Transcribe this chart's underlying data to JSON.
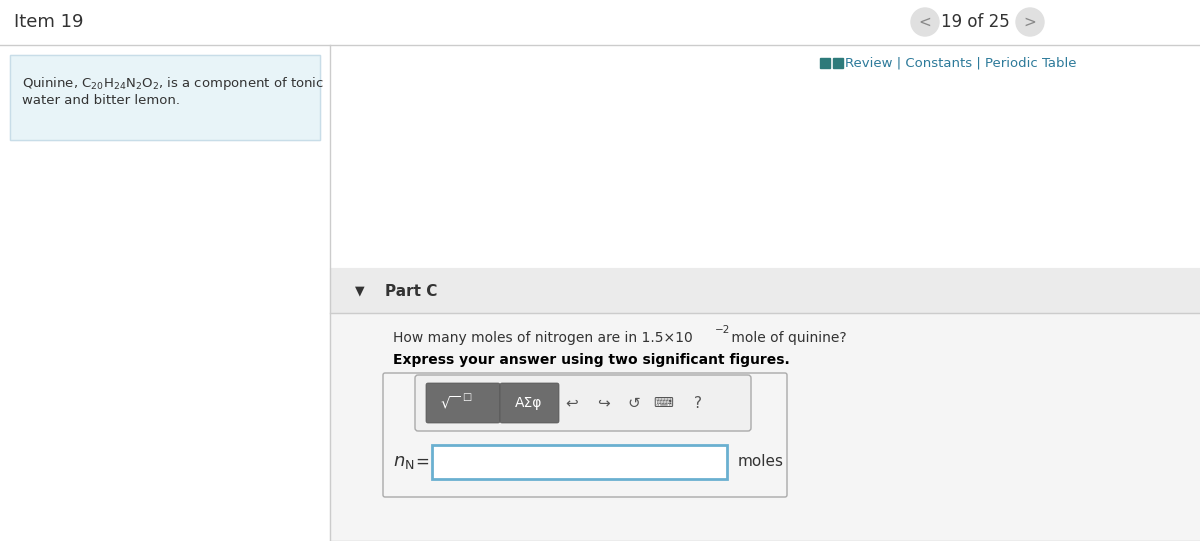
{
  "title": "Item 19",
  "nav_text": "19 of 25",
  "review_text": "Review | Constants | Periodic Table",
  "quinine_text_line1": "Quinine, C",
  "quinine_formula": "C₂₀H₂₄N₂O₂",
  "quinine_text_full": ", is a component of tonic\nwater and bitter lemon.",
  "part_label": "Part C",
  "question": "How many moles of nitrogen are in 1.5×10",
  "question_exp": "−2",
  "question_end": " mole of quinine?",
  "instruction": "Express your answer using two significant figures.",
  "answer_label": "n",
  "answer_subscript": "N",
  "answer_equals": " =",
  "answer_unit": "moles",
  "bg_color": "#ffffff",
  "left_panel_bg": "#e8f4f8",
  "left_panel_border": "#c8dde8",
  "right_panel_bg": "#f5f5f5",
  "part_header_bg": "#e8e8e8",
  "nav_circle_color": "#e0e0e0",
  "nav_arrow_color": "#888888",
  "review_icon_color": "#2d7a7a",
  "toolbar_bg": "#6d6d6d",
  "toolbar_btn_bg": "#5a5a5a",
  "input_border": "#6ab0d0",
  "input_bg": "#ffffff",
  "divider_color": "#cccccc",
  "text_color": "#333333",
  "bold_color": "#000000"
}
